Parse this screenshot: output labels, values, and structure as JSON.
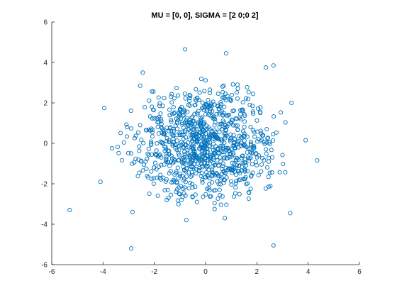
{
  "chart_data": {
    "type": "scatter",
    "title": "MU = [0,  0], SIGMA = [2 0;0 2]",
    "xlabel": "",
    "ylabel": "",
    "xlim": [
      -6,
      6
    ],
    "ylim": [
      -6,
      6
    ],
    "x_ticks": [
      "-6",
      "-4",
      "-2",
      "0",
      "2",
      "4",
      "6"
    ],
    "y_ticks": [
      "-6",
      "-4",
      "-2",
      "0",
      "2",
      "4",
      "6"
    ],
    "grid": false,
    "legend": "none",
    "marker": "open-circle",
    "marker_color": "#0072BD",
    "axis_color": "#262626",
    "outliers": [
      {
        "x": -0.8,
        "y": 4.65
      },
      {
        "x": 0.8,
        "y": 4.45
      },
      {
        "x": -2.45,
        "y": 3.5
      },
      {
        "x": 2.65,
        "y": 3.85
      },
      {
        "x": 2.35,
        "y": 3.75
      },
      {
        "x": 3.35,
        "y": 2.0
      },
      {
        "x": -3.95,
        "y": 1.75
      },
      {
        "x": -4.1,
        "y": -1.9
      },
      {
        "x": 4.35,
        "y": -0.85
      },
      {
        "x": -5.3,
        "y": -3.3
      },
      {
        "x": -2.85,
        "y": -3.4
      },
      {
        "x": 3.3,
        "y": -3.45
      },
      {
        "x": -2.9,
        "y": -5.2
      },
      {
        "x": 2.65,
        "y": -5.05
      },
      {
        "x": 0.75,
        "y": -3.7
      },
      {
        "x": -0.75,
        "y": -3.8
      },
      {
        "x": 0.35,
        "y": -3.25
      },
      {
        "x": -2.55,
        "y": 2.85
      },
      {
        "x": 3.9,
        "y": 0.15
      },
      {
        "x": -3.65,
        "y": -0.25
      }
    ],
    "cluster": {
      "n_points": 960,
      "center": [
        0,
        0
      ],
      "std": [
        1.414,
        1.414
      ]
    }
  }
}
